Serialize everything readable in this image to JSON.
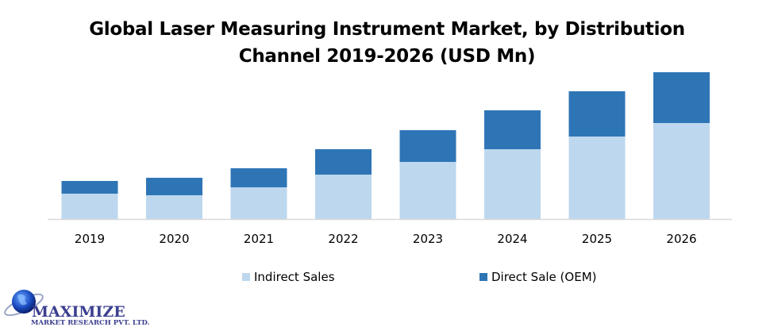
{
  "chart_data": {
    "type": "bar",
    "stacked": true,
    "title": "Global Laser Measuring Instrument Market, by Distribution Channel 2019-2026 (USD Mn)",
    "title_lines": [
      "Global Laser Measuring Instrument Market, by Distribution",
      "Channel 2019-2026 (USD Mn)"
    ],
    "xlabel": "",
    "ylabel": "",
    "y_axis_visible": false,
    "grid": false,
    "legend_position": "bottom",
    "categories": [
      "2019",
      "2020",
      "2021",
      "2022",
      "2023",
      "2024",
      "2025",
      "2026"
    ],
    "series": [
      {
        "name": "Indirect Sales",
        "color": "#bdd7ee",
        "values": [
          32,
          30,
          40,
          56,
          72,
          88,
          104,
          121
        ]
      },
      {
        "name": "Direct Sale (OEM)",
        "color": "#2e75b6",
        "values": [
          16,
          22,
          24,
          32,
          40,
          49,
          57,
          64
        ]
      }
    ],
    "ylim": [
      0,
      185
    ]
  },
  "logo": {
    "name": "MAXIMIZE",
    "subtitle": "MARKET RESEARCH PVT. LTD."
  }
}
